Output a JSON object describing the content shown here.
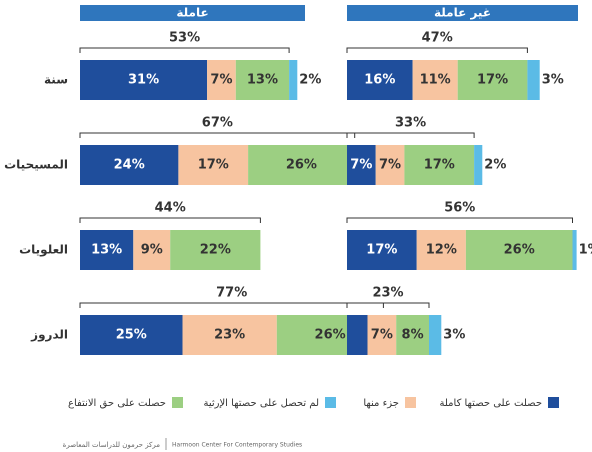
{
  "chart_data": [
    {
      "type": "bar",
      "title": "عاملة",
      "categories": [
        "سنة",
        "المسيحيات",
        "العلويات",
        "الدروز"
      ],
      "totals": [
        53,
        67,
        44,
        77
      ],
      "total_labels": [
        "53%",
        "67%",
        "44%",
        "77%"
      ],
      "series": [
        {
          "name": "حصلت على حصتها كاملة",
          "color": "#1f4e9c",
          "values": [
            31,
            24,
            13,
            25
          ],
          "value_labels": [
            "31%",
            "24%",
            "13%",
            "25%"
          ]
        },
        {
          "name": "جزء منها",
          "color": "#f7c4a0",
          "values": [
            7,
            17,
            9,
            23
          ],
          "value_labels": [
            "7%",
            "17%",
            "9%",
            "23%"
          ]
        },
        {
          "name": "حصلت على حق الانتفاع",
          "color": "#9ccf82",
          "values": [
            13,
            26,
            22,
            26
          ],
          "value_labels": [
            "13%",
            "26%",
            "22%",
            "26%"
          ]
        },
        {
          "name": "لم تحصل على حصتها الإرثية",
          "color": "#5bbbe6",
          "values": [
            2,
            null,
            null,
            3
          ],
          "value_labels": [
            "2%",
            null,
            null,
            "3%"
          ]
        }
      ]
    },
    {
      "type": "bar",
      "title": "غير عاملة",
      "totals": [
        47,
        33,
        56,
        23
      ],
      "total_labels": [
        "47%",
        "33%",
        "56%",
        "23%"
      ],
      "series": [
        {
          "color": "#1f4e9c",
          "values": [
            16,
            7,
            17,
            5
          ],
          "value_labels": [
            "16%",
            "7%",
            "17%",
            "5%"
          ]
        },
        {
          "color": "#f7c4a0",
          "values": [
            11,
            7,
            12,
            7
          ],
          "value_labels": [
            "11%",
            "7%",
            "12%",
            "7%"
          ]
        },
        {
          "color": "#9ccf82",
          "values": [
            17,
            17,
            26,
            8
          ],
          "value_labels": [
            "17%",
            "17%",
            "26%",
            "8%"
          ]
        },
        {
          "color": "#5bbbe6",
          "values": [
            3,
            2,
            1,
            3
          ],
          "value_labels": [
            "3%",
            "2%",
            "1%",
            "3%"
          ]
        }
      ]
    }
  ],
  "footer": {
    "arabic": "مركز حرمون للدراسات المعاصرة",
    "english": "Harmoon Center For Contemporary Studies"
  }
}
